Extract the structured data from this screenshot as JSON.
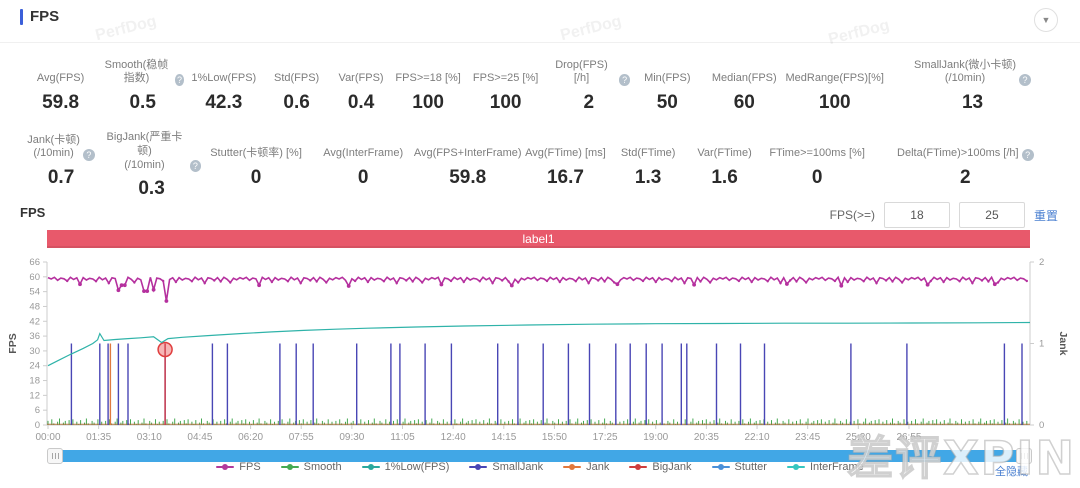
{
  "page": {
    "title": "FPS"
  },
  "watermark": {
    "brand": "PerfDog",
    "overlay": "差评XPIN"
  },
  "colors": {
    "accent": "#3b5fd9",
    "banner": "#e8596b",
    "scrollbar": "#41a7e6",
    "link": "#4a7fd0"
  },
  "stats_row1": [
    {
      "label": "Avg(FPS)",
      "value": "59.8"
    },
    {
      "label": "Smooth(稳帧指数)",
      "value": "0.5",
      "help": true
    },
    {
      "label": "1%Low(FPS)",
      "value": "42.3"
    },
    {
      "label": "Std(FPS)",
      "value": "0.6"
    },
    {
      "label": "Var(FPS)",
      "value": "0.4"
    },
    {
      "label": "FPS>=18 [%]",
      "value": "100"
    },
    {
      "label": "FPS>=25 [%]",
      "value": "100"
    },
    {
      "label": "Drop(FPS) [/h]",
      "value": "2",
      "help": true
    },
    {
      "label": "Min(FPS)",
      "value": "50"
    },
    {
      "label": "Median(FPS)",
      "value": "60"
    },
    {
      "label": "MedRange(FPS)[%]",
      "value": "100"
    },
    {
      "label": "SmallJank(微小卡顿)\n(/10min)",
      "value": "13",
      "help": true
    }
  ],
  "stats_row2": [
    {
      "label": "Jank(卡顿)\n(/10min)",
      "value": "0.7",
      "help": true
    },
    {
      "label": "BigJank(严重卡顿)\n(/10min)",
      "value": "0.3",
      "help": true
    },
    {
      "label": "Stutter(卡顿率) [%]",
      "value": "0"
    },
    {
      "label": "Avg(InterFrame)",
      "value": "0"
    },
    {
      "label": "Avg(FPS+InterFrame)",
      "value": "59.8"
    },
    {
      "label": "Avg(FTime) [ms]",
      "value": "16.7"
    },
    {
      "label": "Std(FTime)",
      "value": "1.3"
    },
    {
      "label": "Var(FTime)",
      "value": "1.6"
    },
    {
      "label": "FTime>=100ms [%]",
      "value": "0"
    },
    {
      "label": "Delta(FTime)>100ms [/h]",
      "value": "2",
      "help": true
    }
  ],
  "chart_section": {
    "title": "FPS",
    "fps_ge_label": "FPS(>=)",
    "threshold1": "18",
    "threshold2": "25",
    "reset_label": "重置"
  },
  "banner": {
    "text": "label1"
  },
  "legend": [
    {
      "label": "FPS",
      "color": "#b23a9c"
    },
    {
      "label": "Smooth",
      "color": "#45a952"
    },
    {
      "label": "1%Low(FPS)",
      "color": "#2aa89d"
    },
    {
      "label": "SmallJank",
      "color": "#4946b5"
    },
    {
      "label": "Jank",
      "color": "#e2783c"
    },
    {
      "label": "BigJank",
      "color": "#cf3e3e"
    },
    {
      "label": "Stutter",
      "color": "#4a90d9"
    },
    {
      "label": "InterFrame",
      "color": "#36c6c0"
    }
  ],
  "hide_all_label": "全隐藏",
  "chart_data": {
    "type": "line",
    "annotation_label": "label1",
    "x_axis": {
      "labels": [
        "00:00",
        "01:35",
        "03:10",
        "04:45",
        "06:20",
        "07:55",
        "09:30",
        "11:05",
        "12:40",
        "14:15",
        "15:50",
        "17:25",
        "19:00",
        "20:35",
        "22:10",
        "23:45",
        "25:20",
        "26:55"
      ],
      "minutes_per_label": 1.5833,
      "max_minutes": 30.7
    },
    "y_left": {
      "label": "FPS",
      "min": 0,
      "max": 66,
      "step": 6
    },
    "y_right": {
      "label": "Jank",
      "min": 0,
      "max": 2,
      "step": 1
    },
    "series": [
      {
        "name": "FPS",
        "axis": "left",
        "color": "#b5309e",
        "base": 60,
        "micro_dip_pattern": [
          0.3,
          0.9,
          0.2,
          1.4,
          0.5,
          0.8,
          1.7,
          0.2,
          1.1,
          0.4,
          2.1,
          0.3,
          1.3,
          0.6,
          0.9,
          1.8,
          0.2,
          1.2,
          0.5,
          2.6,
          0.4,
          0.7,
          1.5,
          0.3,
          1.9,
          0.2,
          1.0,
          2.3,
          0.6,
          1.2
        ],
        "dips": [
          [
            1.02,
            57
          ],
          [
            2.2,
            54.6
          ],
          [
            2.35,
            56.6
          ],
          [
            3.05,
            54.2
          ],
          [
            3.3,
            54.8
          ],
          [
            3.66,
            50.2
          ],
          [
            6.6,
            56.6
          ],
          [
            9.4,
            56.3
          ],
          [
            12.3,
            56.9
          ],
          [
            14.5,
            56.5
          ],
          [
            17.8,
            57
          ],
          [
            20.2,
            56.8
          ],
          [
            23.1,
            57.1
          ],
          [
            24.8,
            56.4
          ],
          [
            27.5,
            56.8
          ],
          [
            29.6,
            57
          ]
        ]
      },
      {
        "name": "Smooth",
        "axis": "right",
        "color": "#45a952",
        "noise_pattern": [
          0.05,
          0,
          0.07,
          0.02,
          0,
          0.04,
          0.08,
          0,
          0.03,
          0.05,
          0,
          0.06,
          0.02,
          0.07,
          0,
          0.04,
          0.01,
          0.06,
          0,
          0.03,
          0.08,
          0.02,
          0,
          0.05,
          0.03,
          0,
          0.07,
          0.01,
          0.04,
          0
        ],
        "noise_step_min": 0.06
      },
      {
        "name": "1%Low(FPS)",
        "axis": "left",
        "color": "#2fb3a9",
        "points": [
          [
            0,
            24
          ],
          [
            0.3,
            26
          ],
          [
            0.7,
            28.6
          ],
          [
            1.1,
            31
          ],
          [
            1.4,
            33
          ],
          [
            1.55,
            34.5
          ],
          [
            1.62,
            37
          ],
          [
            1.75,
            34.2
          ],
          [
            2.1,
            34.6
          ],
          [
            2.5,
            35
          ],
          [
            2.9,
            35.3
          ],
          [
            3.3,
            35.7
          ],
          [
            3.55,
            33.4
          ],
          [
            3.75,
            35
          ],
          [
            4.2,
            35.5
          ],
          [
            5,
            36.2
          ],
          [
            6,
            37
          ],
          [
            7,
            37.7
          ],
          [
            8,
            38.3
          ],
          [
            9,
            38.8
          ],
          [
            10,
            39.2
          ],
          [
            11.5,
            39.7
          ],
          [
            13,
            40.1
          ],
          [
            15,
            40.5
          ],
          [
            17,
            40.8
          ],
          [
            19,
            41
          ],
          [
            21,
            41.1
          ],
          [
            23,
            41.2
          ],
          [
            25,
            41.2
          ],
          [
            27,
            41.3
          ],
          [
            29,
            41.4
          ],
          [
            30.7,
            41.5
          ]
        ]
      },
      {
        "name": "SmallJank",
        "axis": "right",
        "color": "#4946b5",
        "spike_value": 1,
        "spike_times": [
          0.73,
          1.62,
          1.88,
          2.2,
          2.5,
          3.66,
          5.14,
          5.61,
          7.25,
          7.76,
          8.29,
          9.65,
          10.72,
          11.0,
          11.79,
          12.61,
          14.06,
          14.69,
          15.48,
          16.27,
          16.93,
          17.75,
          18.2,
          18.7,
          19.2,
          19.8,
          19.97,
          20.9,
          21.65,
          22.4,
          25.1,
          26.85,
          29.9,
          30.45
        ]
      },
      {
        "name": "Jank",
        "axis": "right",
        "color": "#e07a3f",
        "spike_value": 1,
        "spike_times": [
          1.95
        ]
      },
      {
        "name": "BigJank",
        "axis": "right",
        "color": "#d23c46",
        "spike_value": 1,
        "spike_times": [
          3.66
        ],
        "highlight_circle": true
      },
      {
        "name": "Stutter",
        "axis": "right",
        "color": "#4a90d9",
        "constant": 0
      },
      {
        "name": "InterFrame",
        "axis": "right",
        "color": "#36c6c0",
        "constant": 0
      }
    ]
  }
}
